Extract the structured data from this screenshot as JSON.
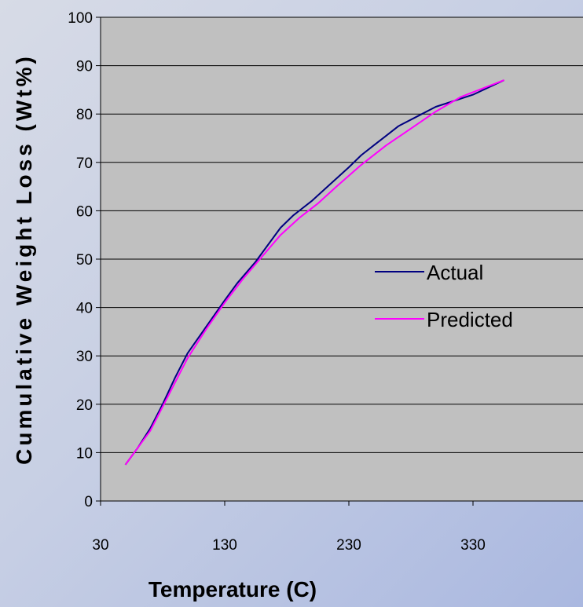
{
  "chart_data": {
    "type": "line",
    "xlabel": "Temperature (C)",
    "ylabel": "Cumulative Weight Loss (Wt%)",
    "xlim": [
      30,
      420
    ],
    "ylim": [
      0,
      100
    ],
    "x_ticks": [
      30,
      130,
      230,
      330
    ],
    "y_ticks": [
      0,
      10,
      20,
      30,
      40,
      50,
      60,
      70,
      80,
      90,
      100
    ],
    "grid": "horizontal",
    "legend_position": "center-right",
    "plot_background": "#c0c0c0",
    "series": [
      {
        "name": "Actual",
        "color": "#000080",
        "points": [
          [
            50,
            7.5
          ],
          [
            60,
            11
          ],
          [
            70,
            15
          ],
          [
            80,
            20
          ],
          [
            90,
            25.5
          ],
          [
            100,
            30.5
          ],
          [
            115,
            36
          ],
          [
            130,
            41.5
          ],
          [
            140,
            45
          ],
          [
            155,
            49.5
          ],
          [
            165,
            53
          ],
          [
            175,
            56.5
          ],
          [
            185,
            59
          ],
          [
            200,
            62
          ],
          [
            215,
            65.5
          ],
          [
            230,
            69
          ],
          [
            240,
            71.5
          ],
          [
            250,
            73.5
          ],
          [
            260,
            75.5
          ],
          [
            270,
            77.5
          ],
          [
            285,
            79.5
          ],
          [
            300,
            81.5
          ],
          [
            330,
            84
          ],
          [
            355,
            87
          ]
        ]
      },
      {
        "name": "Predicted",
        "color": "#ff00ff",
        "points": [
          [
            50,
            7.5
          ],
          [
            60,
            11
          ],
          [
            70,
            14.5
          ],
          [
            80,
            19.5
          ],
          [
            90,
            24.5
          ],
          [
            100,
            29.5
          ],
          [
            115,
            35.5
          ],
          [
            130,
            41
          ],
          [
            145,
            46
          ],
          [
            160,
            50.5
          ],
          [
            175,
            55
          ],
          [
            190,
            58.5
          ],
          [
            205,
            61.5
          ],
          [
            220,
            65
          ],
          [
            240,
            69.5
          ],
          [
            260,
            73.5
          ],
          [
            280,
            77
          ],
          [
            300,
            80.5
          ],
          [
            320,
            83.5
          ],
          [
            355,
            87
          ]
        ]
      }
    ]
  }
}
